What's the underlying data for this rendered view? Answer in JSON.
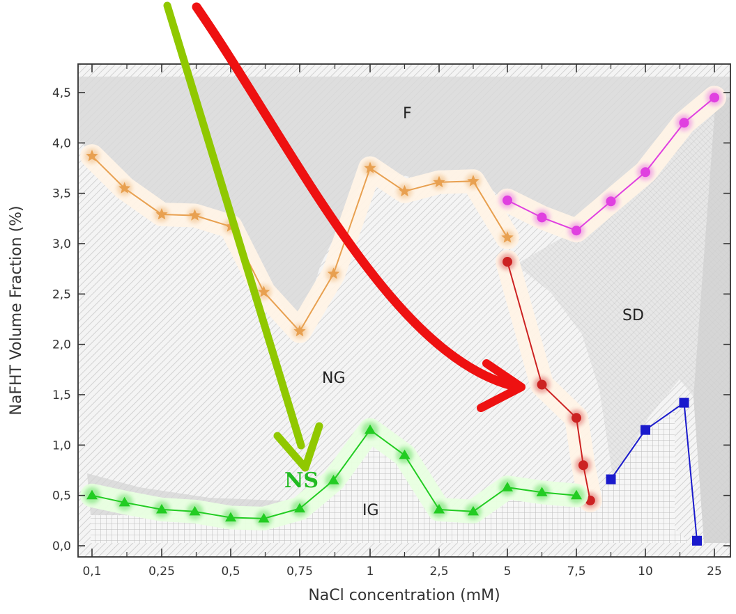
{
  "chart_data": {
    "type": "line",
    "xlabel": "NaCl concentration (mM)",
    "ylabel": "NaFHT Volume Fraction (%)",
    "ylim": [
      0,
      4.5
    ],
    "x_tick_labels": [
      "0,1",
      "0,25",
      "0,5",
      "0,75",
      "1",
      "2,5",
      "5",
      "7,5",
      "10",
      "25"
    ],
    "y_ticks": [
      0,
      0.5,
      1.0,
      1.5,
      2.0,
      2.5,
      3.0,
      3.5,
      4.0,
      4.5
    ],
    "y_tick_labels": [
      "0,0",
      "0,5",
      "1,0",
      "1,5",
      "2,0",
      "2,5",
      "3,0",
      "3,5",
      "4,0",
      "4,5"
    ],
    "grid": false,
    "region_labels": [
      "F",
      "NG",
      "SD",
      "IG"
    ],
    "annotation": "NS",
    "colors": {
      "orange_series": "#e8a050",
      "magenta_series": "#e040e0",
      "red_series": "#cc2222",
      "green_series": "#22cc22",
      "blue_series": "#1a1acc",
      "green_arrow": "#90c800",
      "red_arrow": "#ee1111"
    },
    "series": [
      {
        "marker": "star",
        "color": "#e8a050",
        "points": [
          {
            "x": 0.1,
            "y": 3.87
          },
          {
            "x": 0.17,
            "y": 3.55
          },
          {
            "x": 0.25,
            "y": 3.29
          },
          {
            "x": 0.37,
            "y": 3.28
          },
          {
            "x": 0.5,
            "y": 3.17
          },
          {
            "x": 0.62,
            "y": 2.52
          },
          {
            "x": 0.75,
            "y": 2.13
          },
          {
            "x": 0.87,
            "y": 2.7
          },
          {
            "x": 1,
            "y": 3.75
          },
          {
            "x": 1.75,
            "y": 3.52
          },
          {
            "x": 2.5,
            "y": 3.61
          },
          {
            "x": 3.75,
            "y": 3.62
          },
          {
            "x": 5,
            "y": 3.06
          }
        ]
      },
      {
        "marker": "circle",
        "color": "#cc2222",
        "points": [
          {
            "x": 5,
            "y": 2.82
          },
          {
            "x": 6.25,
            "y": 1.6
          },
          {
            "x": 7.5,
            "y": 1.27
          },
          {
            "x": 7.75,
            "y": 0.8
          },
          {
            "x": 8,
            "y": 0.45
          }
        ]
      },
      {
        "marker": "circle",
        "color": "#e040e0",
        "points": [
          {
            "x": 5,
            "y": 3.43
          },
          {
            "x": 6.25,
            "y": 3.26
          },
          {
            "x": 7.5,
            "y": 3.13
          },
          {
            "x": 8.75,
            "y": 3.42
          },
          {
            "x": 10,
            "y": 3.71
          },
          {
            "x": 17.5,
            "y": 4.2
          },
          {
            "x": 25,
            "y": 4.45
          }
        ]
      },
      {
        "marker": "triangle",
        "color": "#22cc22",
        "points": [
          {
            "x": 0.1,
            "y": 0.5
          },
          {
            "x": 0.17,
            "y": 0.43
          },
          {
            "x": 0.25,
            "y": 0.36
          },
          {
            "x": 0.37,
            "y": 0.34
          },
          {
            "x": 0.5,
            "y": 0.28
          },
          {
            "x": 0.62,
            "y": 0.27
          },
          {
            "x": 0.75,
            "y": 0.37
          },
          {
            "x": 0.87,
            "y": 0.65
          },
          {
            "x": 1,
            "y": 1.15
          },
          {
            "x": 1.75,
            "y": 0.9
          },
          {
            "x": 2.5,
            "y": 0.36
          },
          {
            "x": 3.75,
            "y": 0.34
          },
          {
            "x": 5,
            "y": 0.58
          },
          {
            "x": 6.25,
            "y": 0.53
          },
          {
            "x": 7.5,
            "y": 0.5
          }
        ]
      },
      {
        "marker": "square",
        "color": "#1a1acc",
        "points": [
          {
            "x": 8.75,
            "y": 0.66
          },
          {
            "x": 10,
            "y": 1.15
          },
          {
            "x": 17.5,
            "y": 1.42
          },
          {
            "x": 20,
            "y": 0.05
          }
        ]
      }
    ]
  }
}
